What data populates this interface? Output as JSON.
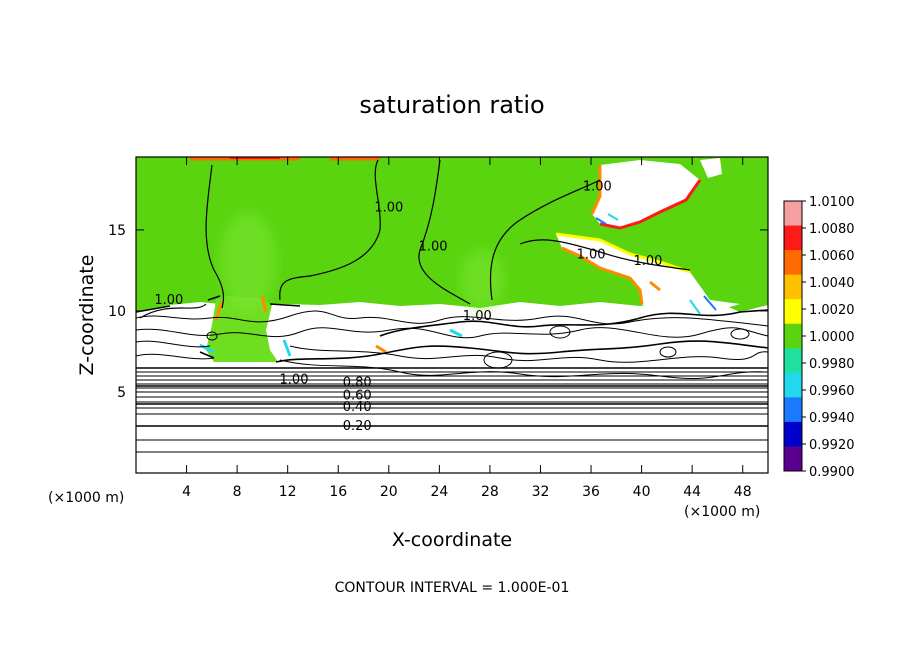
{
  "chart_data": {
    "type": "heatmap",
    "title": "saturation ratio",
    "xlabel": "X-coordinate",
    "ylabel": "Z-coordinate",
    "x_unit_left": "(×1000 m)",
    "x_unit_right": "(×1000 m)",
    "xlim": [
      0,
      50
    ],
    "ylim": [
      0,
      19.5
    ],
    "x_ticks": [
      4,
      8,
      12,
      16,
      20,
      24,
      28,
      32,
      36,
      40,
      44,
      48
    ],
    "y_ticks": [
      5,
      10,
      15
    ],
    "colorbar": {
      "levels": [
        "1.0100",
        "1.0080",
        "1.0060",
        "1.0040",
        "1.0020",
        "1.0000",
        "0.9980",
        "0.9960",
        "0.9940",
        "0.9920",
        "0.9900"
      ],
      "colors": [
        "#f4a0a0",
        "#ff1a1a",
        "#ff6a00",
        "#ffc000",
        "#ffff00",
        "#5ad40f",
        "#20e0a0",
        "#22d8ee",
        "#1a7aff",
        "#0000cc",
        "#5a0090"
      ]
    },
    "contour_labels": [
      {
        "text": "1.00",
        "x": 2.6,
        "y": 10.5
      },
      {
        "text": "1.00",
        "x": 20.0,
        "y": 16.2
      },
      {
        "text": "1.00",
        "x": 23.5,
        "y": 13.8
      },
      {
        "text": "1.00",
        "x": 36.5,
        "y": 17.5
      },
      {
        "text": "1.00",
        "x": 36.0,
        "y": 13.3
      },
      {
        "text": "1.00",
        "x": 40.5,
        "y": 12.9
      },
      {
        "text": "1.00",
        "x": 27.0,
        "y": 9.5
      },
      {
        "text": "1.00",
        "x": 12.5,
        "y": 5.6
      },
      {
        "text": "0.80",
        "x": 17.5,
        "y": 5.4
      },
      {
        "text": "0.60",
        "x": 17.5,
        "y": 4.6
      },
      {
        "text": "0.40",
        "x": 17.5,
        "y": 3.9
      },
      {
        "text": "0.20",
        "x": 17.5,
        "y": 2.7
      }
    ],
    "footer": "CONTOUR INTERVAL = 1.000E-01"
  }
}
